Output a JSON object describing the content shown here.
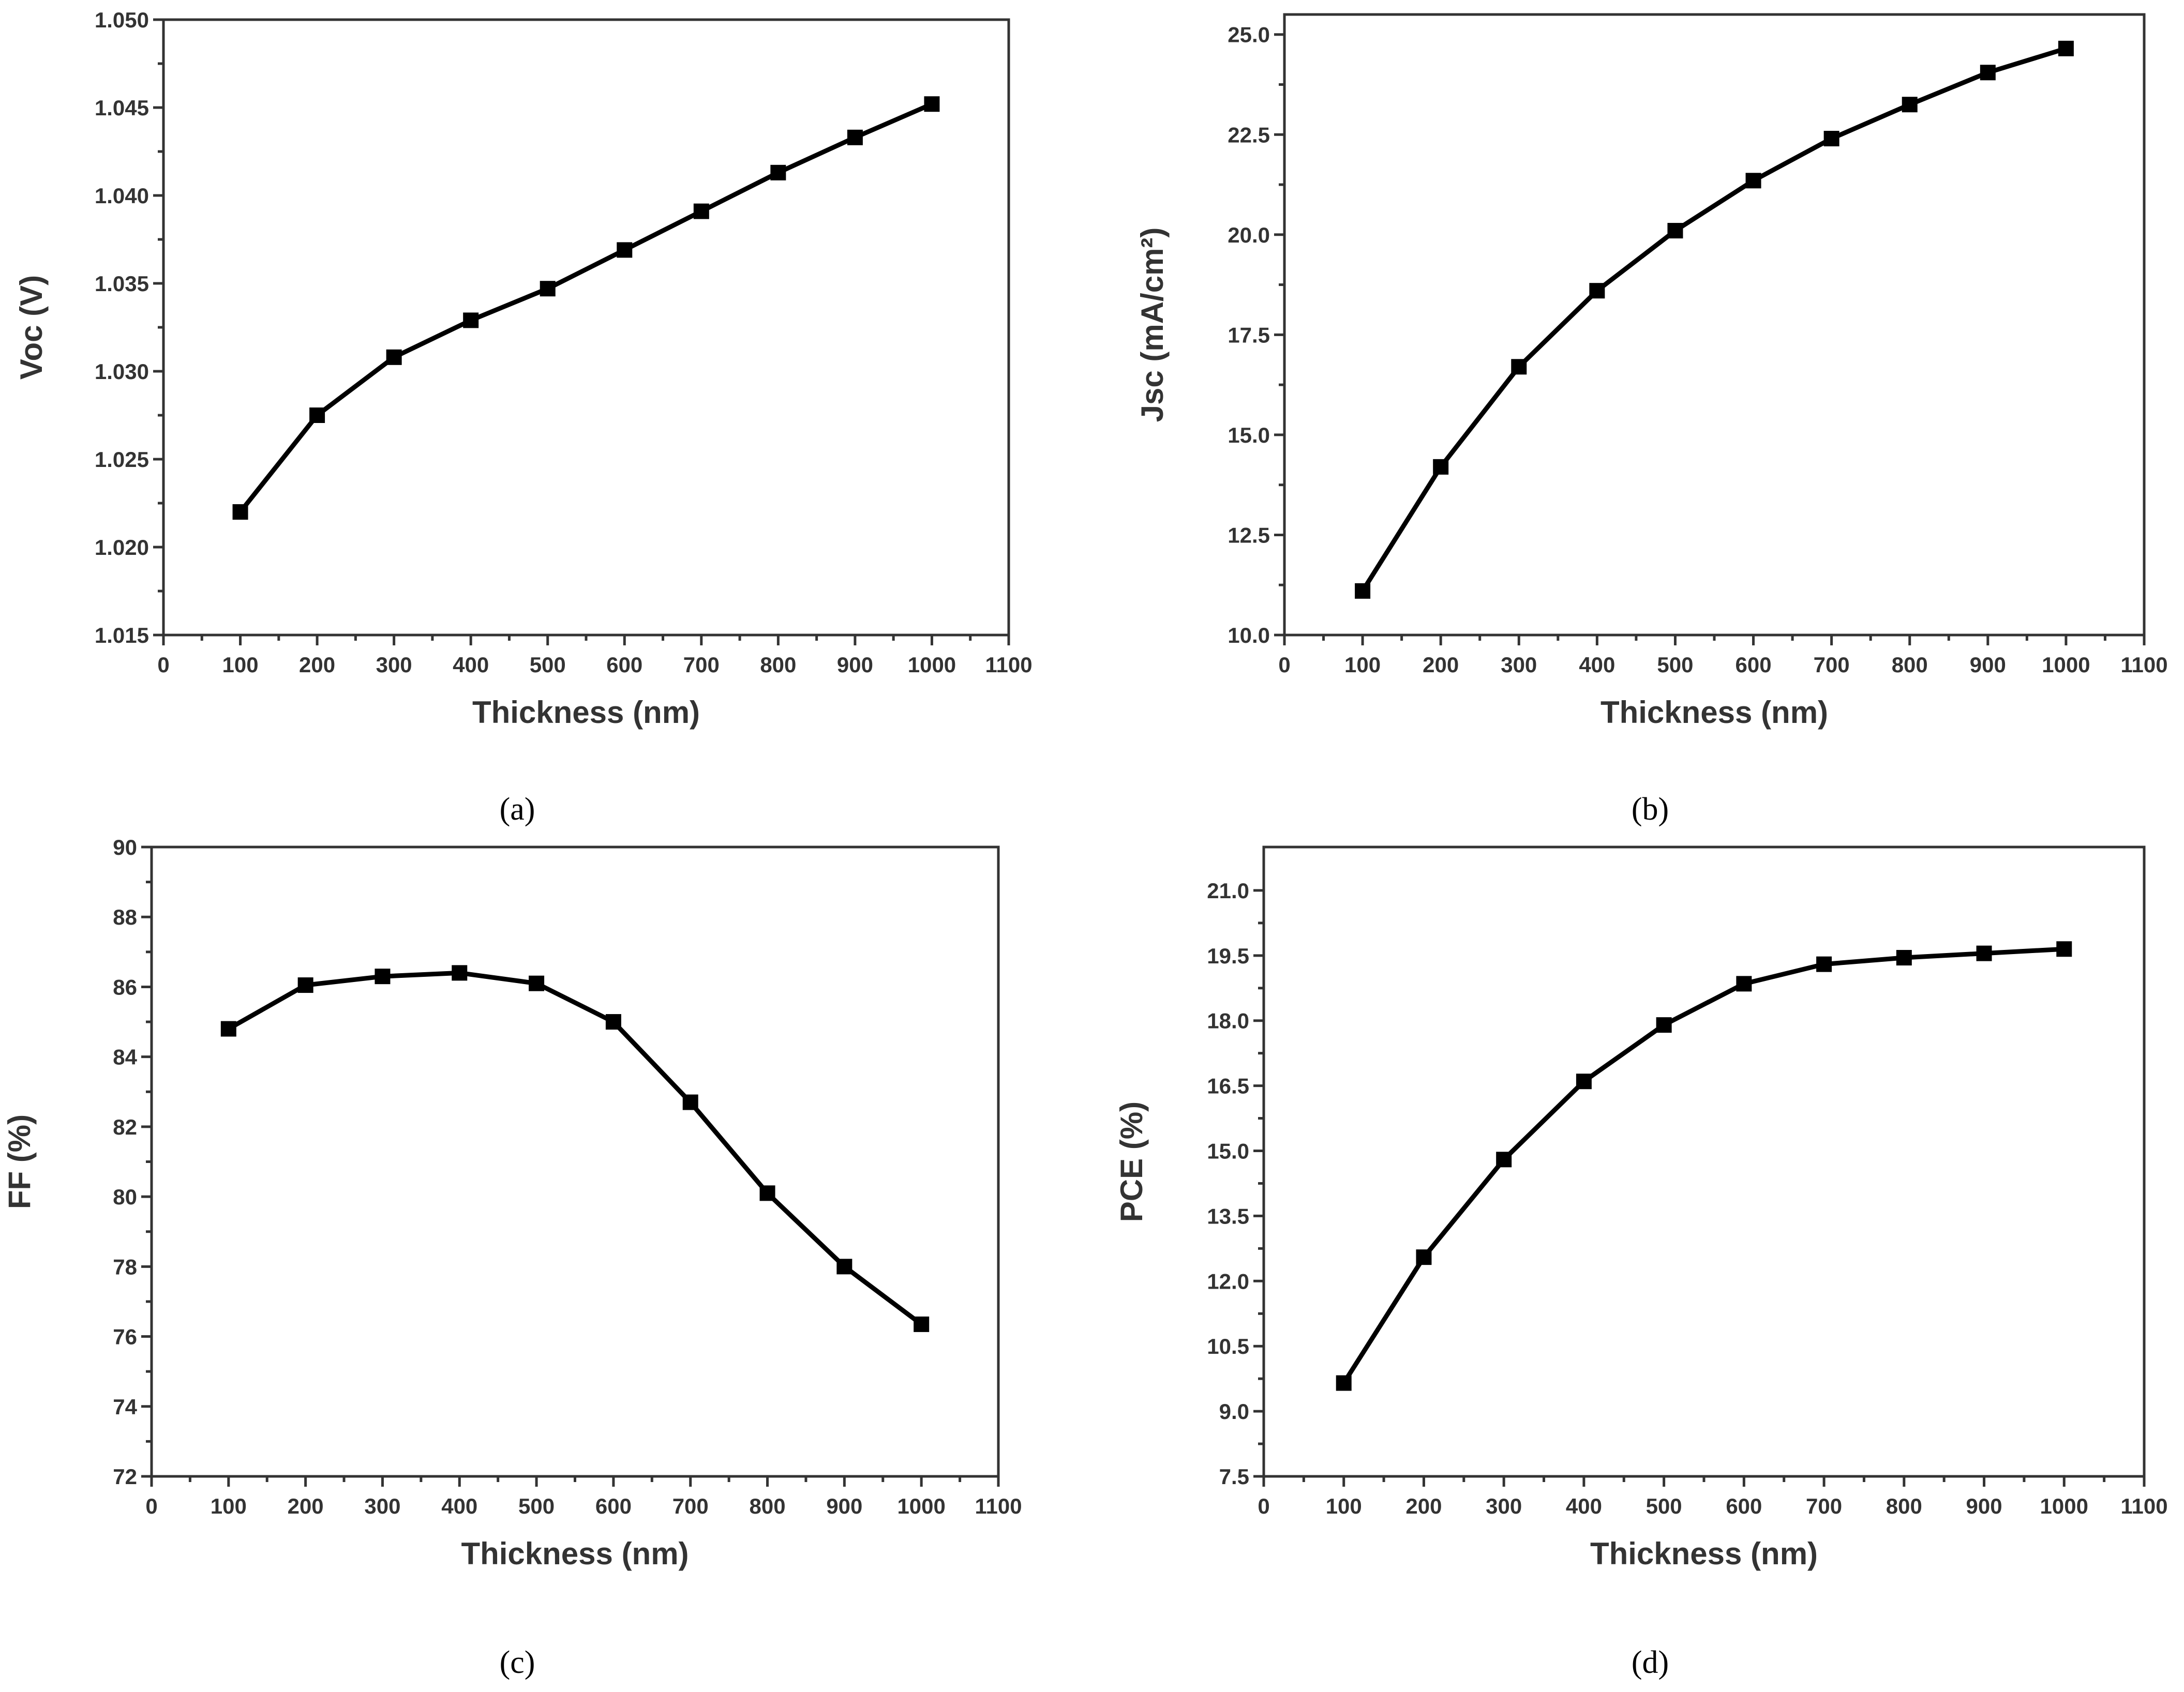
{
  "chart_data": [
    {
      "type": "line",
      "caption": "(a)",
      "xlabel": "Thickness (nm)",
      "ylabel": "Voc (V)",
      "xlim": [
        0,
        1100
      ],
      "ylim": [
        1.015,
        1.05
      ],
      "xticks": [
        0,
        100,
        200,
        300,
        400,
        500,
        600,
        700,
        800,
        900,
        1000,
        1100
      ],
      "xtick_labels": [
        "0",
        "100",
        "200",
        "300",
        "400",
        "500",
        "600",
        "700",
        "800",
        "900",
        "1000",
        "1100"
      ],
      "yticks": [
        1.015,
        1.02,
        1.025,
        1.03,
        1.035,
        1.04,
        1.045,
        1.05
      ],
      "ytick_labels": [
        "1.015",
        "1.020",
        "1.025",
        "1.030",
        "1.035",
        "1.040",
        "1.045",
        "1.050"
      ],
      "x": [
        100,
        200,
        300,
        400,
        500,
        600,
        700,
        800,
        900,
        1000
      ],
      "y": [
        1.022,
        1.0275,
        1.0308,
        1.0329,
        1.0347,
        1.0369,
        1.0391,
        1.0413,
        1.0433,
        1.0452
      ]
    },
    {
      "type": "line",
      "caption": "(b)",
      "xlabel": "Thickness (nm)",
      "ylabel": "Jsc (mA/cm²)",
      "xlim": [
        0,
        1100
      ],
      "ylim": [
        10.0,
        25.5
      ],
      "xticks": [
        0,
        100,
        200,
        300,
        400,
        500,
        600,
        700,
        800,
        900,
        1000,
        1100
      ],
      "xtick_labels": [
        "0",
        "100",
        "200",
        "300",
        "400",
        "500",
        "600",
        "700",
        "800",
        "900",
        "1000",
        "1100"
      ],
      "yticks": [
        10.0,
        12.5,
        15.0,
        17.5,
        20.0,
        22.5,
        25.0
      ],
      "ytick_labels": [
        "10.0",
        "12.5",
        "15.0",
        "17.5",
        "20.0",
        "22.5",
        "25.0"
      ],
      "x": [
        100,
        200,
        300,
        400,
        500,
        600,
        700,
        800,
        900,
        1000
      ],
      "y": [
        11.1,
        14.2,
        16.7,
        18.6,
        20.1,
        21.35,
        22.4,
        23.25,
        24.05,
        24.65
      ]
    },
    {
      "type": "line",
      "caption": "(c)",
      "xlabel": "Thickness (nm)",
      "ylabel": "FF (%)",
      "xlim": [
        0,
        1100
      ],
      "ylim": [
        72,
        90
      ],
      "xticks": [
        0,
        100,
        200,
        300,
        400,
        500,
        600,
        700,
        800,
        900,
        1000,
        1100
      ],
      "xtick_labels": [
        "0",
        "100",
        "200",
        "300",
        "400",
        "500",
        "600",
        "700",
        "800",
        "900",
        "1000",
        "1100"
      ],
      "yticks": [
        72,
        74,
        76,
        78,
        80,
        82,
        84,
        86,
        88,
        90
      ],
      "ytick_labels": [
        "72",
        "74",
        "76",
        "78",
        "80",
        "82",
        "84",
        "86",
        "88",
        "90"
      ],
      "x": [
        100,
        200,
        300,
        400,
        500,
        600,
        700,
        800,
        900,
        1000
      ],
      "y": [
        84.8,
        86.05,
        86.3,
        86.4,
        86.1,
        85.0,
        82.7,
        80.1,
        78.0,
        76.35
      ]
    },
    {
      "type": "line",
      "caption": "(d)",
      "xlabel": "Thickness (nm)",
      "ylabel": "PCE (%)",
      "xlim": [
        0,
        1100
      ],
      "ylim": [
        7.5,
        22.0
      ],
      "xticks": [
        0,
        100,
        200,
        300,
        400,
        500,
        600,
        700,
        800,
        900,
        1000,
        1100
      ],
      "xtick_labels": [
        "0",
        "100",
        "200",
        "300",
        "400",
        "500",
        "600",
        "700",
        "800",
        "900",
        "1000",
        "1100"
      ],
      "yticks": [
        7.5,
        9.0,
        10.5,
        12.0,
        13.5,
        15.0,
        16.5,
        18.0,
        19.5,
        21.0
      ],
      "ytick_labels": [
        "7.5",
        "9.0",
        "10.5",
        "12.0",
        "13.5",
        "15.0",
        "16.5",
        "18.0",
        "19.5",
        "21.0"
      ],
      "x": [
        100,
        200,
        300,
        400,
        500,
        600,
        700,
        800,
        900,
        1000
      ],
      "y": [
        9.65,
        12.55,
        14.8,
        16.6,
        17.9,
        18.85,
        19.3,
        19.45,
        19.55,
        19.65
      ]
    }
  ]
}
